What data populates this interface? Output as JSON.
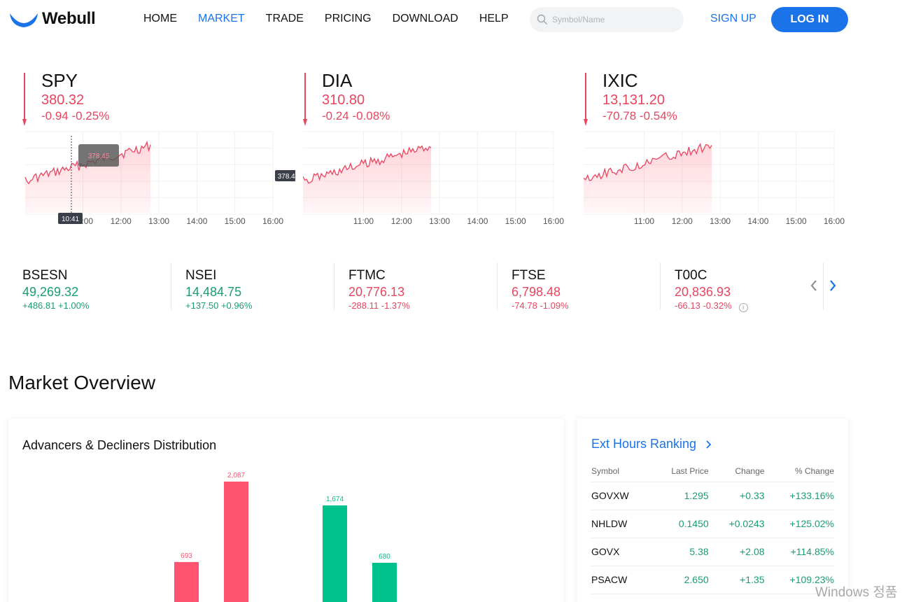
{
  "header": {
    "logo_text": "Webull",
    "nav": [
      "HOME",
      "MARKET",
      "TRADE",
      "PRICING",
      "DOWNLOAD",
      "HELP"
    ],
    "active_nav": "MARKET",
    "search_placeholder": "Symbol/Name",
    "signup_label": "SIGN UP",
    "login_label": "LOG IN"
  },
  "indices": [
    {
      "symbol": "SPY",
      "price": "380.32",
      "change": "-0.94 -0.25%",
      "x_ticks": [
        "11:00",
        "12:00",
        "13:00",
        "14:00",
        "15:00",
        "16:00"
      ],
      "tooltip_time": "10:41",
      "tooltip_value": "378.45",
      "hover_value": "378.45"
    },
    {
      "symbol": "DIA",
      "price": "310.80",
      "change": "-0.24 -0.08%",
      "x_ticks": [
        "11:00",
        "12:00",
        "13:00",
        "14:00",
        "15:00",
        "16:00"
      ]
    },
    {
      "symbol": "IXIC",
      "price": "13,131.20",
      "change": "-70.78 -0.54%",
      "x_ticks": [
        "11:00",
        "12:00",
        "13:00",
        "14:00",
        "15:00",
        "16:00"
      ]
    }
  ],
  "global_indices": [
    {
      "symbol": "BSESN",
      "price": "49,269.32",
      "change": "+486.81 +1.00%",
      "dir": "up"
    },
    {
      "symbol": "NSEI",
      "price": "14,484.75",
      "change": "+137.50 +0.96%",
      "dir": "up"
    },
    {
      "symbol": "FTMC",
      "price": "20,776.13",
      "change": "-288.11 -1.37%",
      "dir": "down"
    },
    {
      "symbol": "FTSE",
      "price": "6,798.48",
      "change": "-74.78 -1.09%",
      "dir": "down"
    },
    {
      "symbol": "T00C",
      "price": "20,836.93",
      "change": "-66.13 -0.32%",
      "dir": "down"
    }
  ],
  "market_overview": {
    "title": "Market Overview",
    "ad_title": "Advancers & Decliners Distribution",
    "chart_data": {
      "type": "bar",
      "values": [
        693,
        2087,
        1674,
        680
      ],
      "labels": [
        "693",
        "2,087",
        "1,674",
        "680"
      ],
      "colors": [
        "#ff5370",
        "#ff5370",
        "#00c08b",
        "#00c08b"
      ]
    },
    "ext_title": "Ext Hours Ranking",
    "ext_columns": [
      "Symbol",
      "Last Price",
      "Change",
      "% Change"
    ],
    "ext_rows": [
      [
        "GOVXW",
        "1.295",
        "+0.33",
        "+133.16%"
      ],
      [
        "NHLDW",
        "0.1450",
        "+0.0243",
        "+125.02%"
      ],
      [
        "GOVX",
        "5.38",
        "+2.08",
        "+114.85%"
      ],
      [
        "PSACW",
        "2.650",
        "+1.35",
        "+109.23%"
      ]
    ]
  },
  "colors": {
    "accent": "#1a73e8",
    "down": "#e8455f",
    "up": "#1a9e6f"
  },
  "watermark": "Windows 정품"
}
